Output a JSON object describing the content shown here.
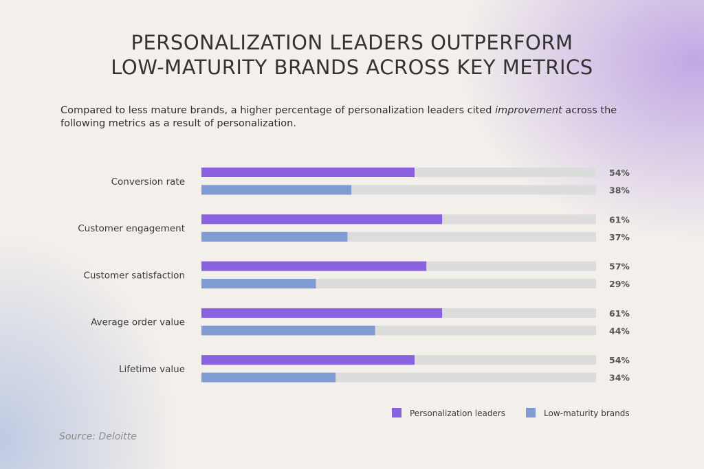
{
  "title": {
    "line1": "PERSONALIZATION LEADERS OUTPERFORM",
    "line2": "LOW-MATURITY BRANDS ACROSS KEY METRICS"
  },
  "subtitle": {
    "before": "Compared to less mature brands, a higher percentage of personalization leaders cited ",
    "emphasis": "improvement",
    "after": " across the following metrics as a result of personalization."
  },
  "source": "Source: Deloitte",
  "colors": {
    "leaders": "#8a61de",
    "low_maturity": "#7f9bd1",
    "track": "#dcdcdc",
    "text": "#3a3a3a"
  },
  "chart_data": {
    "type": "bar",
    "orientation": "horizontal",
    "categories": [
      "Conversion rate",
      "Customer engagement",
      "Customer satisfaction",
      "Average order value",
      "Lifetime value"
    ],
    "series": [
      {
        "name": "Personalization leaders",
        "values": [
          54,
          61,
          57,
          61,
          54
        ],
        "labels": [
          "54%",
          "61%",
          "57%",
          "61%",
          "54%"
        ]
      },
      {
        "name": "Low-maturity brands",
        "values": [
          38,
          37,
          29,
          44,
          34
        ],
        "labels": [
          "38%",
          "37%",
          "29%",
          "44%",
          "34%"
        ]
      }
    ],
    "xlim": [
      0,
      100
    ],
    "value_suffix": "%",
    "legend": "bottom-right",
    "grid": false
  }
}
